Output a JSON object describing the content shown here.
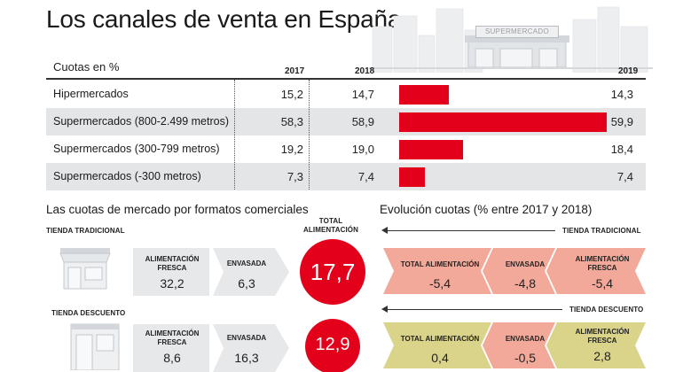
{
  "title": "Los canales de venta en España",
  "store_sign": "SUPERMERCADO",
  "table": {
    "caption": "Cuotas en %",
    "years": [
      "2017",
      "2018",
      "2019"
    ],
    "rows": [
      {
        "label": "Hipermercados",
        "v2017": "15,2",
        "v2018": "14,7",
        "v2019": "14,3"
      },
      {
        "label": "Supermercados (800-2.499 metros)",
        "v2017": "58,3",
        "v2018": "58,9",
        "v2019": "59,9"
      },
      {
        "label": "Supermercados (300-799 metros)",
        "v2017": "19,2",
        "v2018": "19,0",
        "v2019": "18,4"
      },
      {
        "label": "Supermercados (-300 metros)",
        "v2017": "7,3",
        "v2018": "7,4",
        "v2019": "7,4"
      }
    ]
  },
  "chart_data": {
    "type": "bar",
    "title": "Cuotas en %",
    "categories": [
      "Hipermercados",
      "Supermercados (800-2.499 metros)",
      "Supermercados (300-799 metros)",
      "Supermercados (-300 metros)"
    ],
    "series": [
      {
        "name": "2017",
        "values": [
          15.2,
          58.3,
          19.2,
          7.3
        ]
      },
      {
        "name": "2018",
        "values": [
          14.7,
          58.9,
          19.0,
          7.4
        ]
      },
      {
        "name": "2019",
        "values": [
          14.3,
          59.9,
          18.4,
          7.4
        ]
      }
    ],
    "bar_series": "2019",
    "orientation": "horizontal",
    "bar_color": "#e3001b"
  },
  "left": {
    "title": "Las cuotas de mercado por formatos comerciales",
    "total_label": "TOTAL ALIMENTACIÓN",
    "groups": [
      {
        "name": "TIENDA TRADICIONAL",
        "fresh_label": "ALIMENTACIÓN FRESCA",
        "fresh_value": "32,2",
        "packed_label": "ENVASADA",
        "packed_value": "6,3",
        "total": "17,7"
      },
      {
        "name": "TIENDA DESCUENTO",
        "fresh_label": "ALIMENTACIÓN FRESCA",
        "fresh_value": "8,6",
        "packed_label": "ENVASADA",
        "packed_value": "16,3",
        "total": "12,9"
      }
    ]
  },
  "right": {
    "title": "Evolución cuotas (% entre 2017 y 2018)",
    "groups": [
      {
        "name": "TIENDA TRADICIONAL",
        "total_label": "TOTAL ALIMENTACIÓN",
        "total": "-5,4",
        "packed_label": "ENVASADA",
        "packed": "-4,8",
        "fresh_label": "ALIMENTACIÓN FRESCA",
        "fresh": "-5,4"
      },
      {
        "name": "TIENDA DESCUENTO",
        "total_label": "TOTAL ALIMENTACIÓN",
        "total": "0,4",
        "packed_label": "ENVASADA",
        "packed": "-0,5",
        "fresh_label": "ALIMENTACIÓN FRESCA",
        "fresh": "2,8"
      }
    ]
  },
  "colors": {
    "red": "#e3001b",
    "grey": "#e3e5e7",
    "salmon": "#f2a99a",
    "olive": "#dad38a"
  },
  "icons": [
    "city-skyline-icon",
    "supermarket-icon",
    "traditional-shop-icon",
    "discount-store-icon"
  ]
}
